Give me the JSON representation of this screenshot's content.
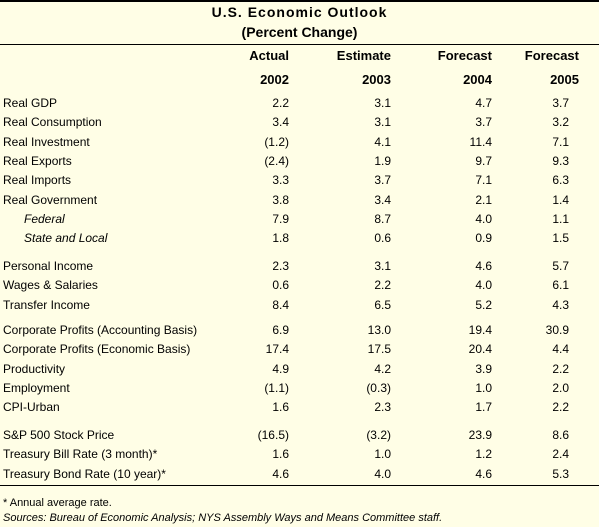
{
  "title": "U.S. Economic Outlook",
  "subtitle": "(Percent Change)",
  "columns": [
    {
      "top": "Actual",
      "year": "2002"
    },
    {
      "top": "Estimate",
      "year": "2003"
    },
    {
      "top": "Forecast",
      "year": "2004"
    },
    {
      "top": "Forecast",
      "year": "2005"
    }
  ],
  "groups": [
    [
      {
        "label": "Real GDP",
        "values": [
          "2.2",
          "3.1",
          "4.7",
          "3.7"
        ],
        "indent": false
      },
      {
        "label": "Real Consumption",
        "values": [
          "3.4",
          "3.1",
          "3.7",
          "3.2"
        ],
        "indent": false
      },
      {
        "label": "Real Investment",
        "values": [
          "(1.2)",
          "4.1",
          "11.4",
          "7.1"
        ],
        "indent": false
      },
      {
        "label": "Real Exports",
        "values": [
          "(2.4)",
          "1.9",
          "9.7",
          "9.3"
        ],
        "indent": false
      },
      {
        "label": "Real Imports",
        "values": [
          "3.3",
          "3.7",
          "7.1",
          "6.3"
        ],
        "indent": false
      },
      {
        "label": "Real Government",
        "values": [
          "3.8",
          "3.4",
          "2.1",
          "1.4"
        ],
        "indent": false
      },
      {
        "label": "Federal",
        "values": [
          "7.9",
          "8.7",
          "4.0",
          "1.1"
        ],
        "indent": true
      },
      {
        "label": "State and Local",
        "values": [
          "1.8",
          "0.6",
          "0.9",
          "1.5"
        ],
        "indent": true
      }
    ],
    [
      {
        "label": "Personal Income",
        "values": [
          "2.3",
          "3.1",
          "4.6",
          "5.7"
        ],
        "indent": false
      },
      {
        "label": "Wages & Salaries",
        "values": [
          "0.6",
          "2.2",
          "4.0",
          "6.1"
        ],
        "indent": false
      },
      {
        "label": "Transfer Income",
        "values": [
          "8.4",
          "6.5",
          "5.2",
          "4.3"
        ],
        "indent": false
      }
    ],
    [
      {
        "label": "Corporate Profits (Accounting Basis)",
        "values": [
          "6.9",
          "13.0",
          "19.4",
          "30.9"
        ],
        "indent": false
      },
      {
        "label": "Corporate Profits (Economic Basis)",
        "values": [
          "17.4",
          "17.5",
          "20.4",
          "4.4"
        ],
        "indent": false
      },
      {
        "label": "Productivity",
        "values": [
          "4.9",
          "4.2",
          "3.9",
          "2.2"
        ],
        "indent": false
      },
      {
        "label": "Employment",
        "values": [
          "(1.1)",
          "(0.3)",
          "1.0",
          "2.0"
        ],
        "indent": false
      },
      {
        "label": "CPI-Urban",
        "values": [
          "1.6",
          "2.3",
          "1.7",
          "2.2"
        ],
        "indent": false
      }
    ],
    [
      {
        "label": "S&P 500 Stock Price",
        "values": [
          "(16.5)",
          "(3.2)",
          "23.9",
          "8.6"
        ],
        "indent": false
      },
      {
        "label": "Treasury Bill Rate (3 month)*",
        "values": [
          "1.6",
          "1.0",
          "1.2",
          "2.4"
        ],
        "indent": false
      },
      {
        "label": "Treasury Bond Rate (10 year)*",
        "values": [
          "4.6",
          "4.0",
          "4.6",
          "5.3"
        ],
        "indent": false
      }
    ]
  ],
  "footnote": "* Annual average rate.",
  "sources": "Sources: Bureau of Economic Analysis; NYS Assembly Ways and Means Committee staff."
}
